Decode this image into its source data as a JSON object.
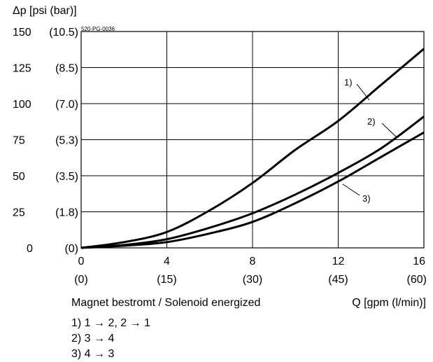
{
  "chart_data": {
    "type": "line",
    "ylabel": "Δp [psi (bar)]",
    "xlabel": "Q [gpm (l/min)]",
    "doc_code": "520-PG-0036",
    "caption": "Magnet bestromt / Solenoid energized",
    "xlim": [
      0,
      16
    ],
    "ylim": [
      0,
      150
    ],
    "x_ticks": [
      {
        "value": 0,
        "primary": "0",
        "secondary": "(0)"
      },
      {
        "value": 4,
        "primary": "4",
        "secondary": "(15)"
      },
      {
        "value": 8,
        "primary": "8",
        "secondary": "(30)"
      },
      {
        "value": 12,
        "primary": "12",
        "secondary": "(45)"
      },
      {
        "value": 16,
        "primary": "16",
        "secondary": "(60)"
      }
    ],
    "y_ticks": [
      {
        "value": 150,
        "primary": "150",
        "secondary": "(10.5)"
      },
      {
        "value": 125,
        "primary": "125",
        "secondary": "(8.5)"
      },
      {
        "value": 100,
        "primary": "100",
        "secondary": "(7.0)"
      },
      {
        "value": 75,
        "primary": "75",
        "secondary": "(5.3)"
      },
      {
        "value": 50,
        "primary": "50",
        "secondary": "(3.5)"
      },
      {
        "value": 25,
        "primary": "25",
        "secondary": "(1.8)"
      },
      {
        "value": 0,
        "primary": "0",
        "secondary": "(0)"
      }
    ],
    "grid": true,
    "series": [
      {
        "name": "1)",
        "x": [
          0,
          2,
          4,
          6,
          8,
          10,
          12,
          14,
          16
        ],
        "y": [
          0,
          4,
          11,
          26,
          45,
          68,
          88,
          113,
          138
        ]
      },
      {
        "name": "2)",
        "x": [
          0,
          2,
          4,
          6,
          8,
          10,
          12,
          14,
          16
        ],
        "y": [
          0,
          2,
          6,
          14,
          24,
          37,
          52,
          69,
          91
        ]
      },
      {
        "name": "3)",
        "x": [
          0,
          2,
          4,
          6,
          8,
          10,
          12,
          14,
          16
        ],
        "y": [
          0,
          1.5,
          4,
          10,
          18,
          31,
          46,
          63,
          80
        ]
      }
    ],
    "legend": [
      "1)  1 → 2, 2 → 1",
      "2)  3 → 4",
      "3)  4 → 3"
    ]
  }
}
